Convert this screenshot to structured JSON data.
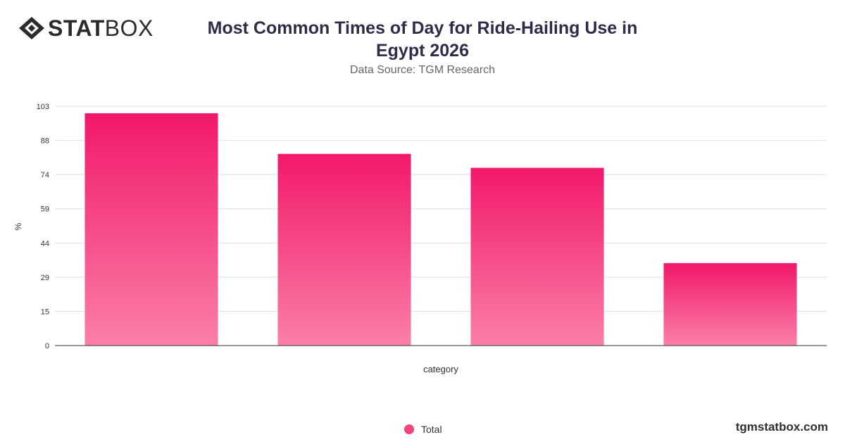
{
  "logo": {
    "bold": "STAT",
    "light": "BOX"
  },
  "brand_url": "tgmstatbox.com",
  "colors": {
    "bar_top": "#f2186a",
    "bar_bottom": "#fa7fa8",
    "legend": "#f0457f",
    "title": "#2e2c48"
  },
  "chart_data": {
    "type": "bar",
    "title": "Most Common Times of Day for Ride-Hailing Use in Egypt 2026",
    "subtitle": "Data Source: TGM Research",
    "xlabel": "category",
    "ylabel": "%",
    "categories": [
      "",
      "",
      "",
      ""
    ],
    "series": [
      {
        "name": "Total",
        "values": [
          100,
          82.5,
          76.5,
          35.5
        ]
      }
    ],
    "yticks": [
      "0",
      "15",
      "29",
      "44",
      "59",
      "74",
      "88",
      "103"
    ],
    "ylim": [
      0,
      103
    ],
    "grid": true,
    "legend": "bottom-center"
  }
}
